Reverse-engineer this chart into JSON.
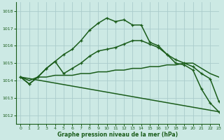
{
  "title": "Graphe pression niveau de la mer (hPa)",
  "background_color": "#cce9e4",
  "grid_color": "#aacccc",
  "line_color": "#1a5c1a",
  "xlim": [
    -0.5,
    23
  ],
  "ylim": [
    1011.5,
    1018.5
  ],
  "yticks": [
    1012,
    1013,
    1014,
    1015,
    1016,
    1017,
    1018
  ],
  "xticks": [
    0,
    1,
    2,
    3,
    4,
    5,
    6,
    7,
    8,
    9,
    10,
    11,
    12,
    13,
    14,
    15,
    16,
    17,
    18,
    19,
    20,
    21,
    22,
    23
  ],
  "series": [
    {
      "x": [
        0,
        1,
        2,
        3,
        4,
        5,
        6,
        7,
        8,
        9,
        10,
        11,
        12,
        13,
        14,
        15,
        16,
        17,
        18,
        19,
        20,
        21,
        22,
        23
      ],
      "y": [
        1014.2,
        1013.8,
        1014.2,
        1014.7,
        1015.1,
        1015.5,
        1015.8,
        1016.3,
        1016.9,
        1017.3,
        1017.6,
        1017.4,
        1017.5,
        1017.2,
        1017.2,
        1016.2,
        1016.0,
        1015.5,
        1015.0,
        1014.9,
        1014.6,
        1013.5,
        1012.7,
        1012.2
      ],
      "has_markers": true,
      "linewidth": 1.1
    },
    {
      "x": [
        0,
        1,
        2,
        3,
        4,
        5,
        6,
        7,
        8,
        9,
        10,
        11,
        12,
        13,
        14,
        15,
        16,
        17,
        18,
        19,
        20,
        21,
        22,
        23
      ],
      "y": [
        1014.2,
        1013.8,
        1014.2,
        1014.7,
        1015.1,
        1014.4,
        1014.7,
        1015.0,
        1015.4,
        1015.7,
        1015.8,
        1015.9,
        1016.1,
        1016.3,
        1016.3,
        1016.1,
        1015.9,
        1015.5,
        1015.2,
        1015.0,
        1014.8,
        1014.4,
        1014.1,
        1012.8
      ],
      "has_markers": true,
      "linewidth": 1.1
    },
    {
      "x": [
        0,
        1,
        2,
        3,
        4,
        5,
        6,
        7,
        8,
        9,
        10,
        11,
        12,
        13,
        14,
        15,
        16,
        17,
        18,
        19,
        20,
        21,
        22,
        23
      ],
      "y": [
        1014.2,
        1014.0,
        1014.2,
        1014.2,
        1014.3,
        1014.3,
        1014.3,
        1014.4,
        1014.4,
        1014.5,
        1014.5,
        1014.6,
        1014.6,
        1014.7,
        1014.7,
        1014.8,
        1014.8,
        1014.9,
        1014.9,
        1015.0,
        1015.0,
        1014.7,
        1014.4,
        1014.2
      ],
      "has_markers": false,
      "linewidth": 1.1
    },
    {
      "x": [
        0,
        23
      ],
      "y": [
        1014.2,
        1012.2
      ],
      "has_markers": false,
      "linewidth": 1.1
    }
  ]
}
